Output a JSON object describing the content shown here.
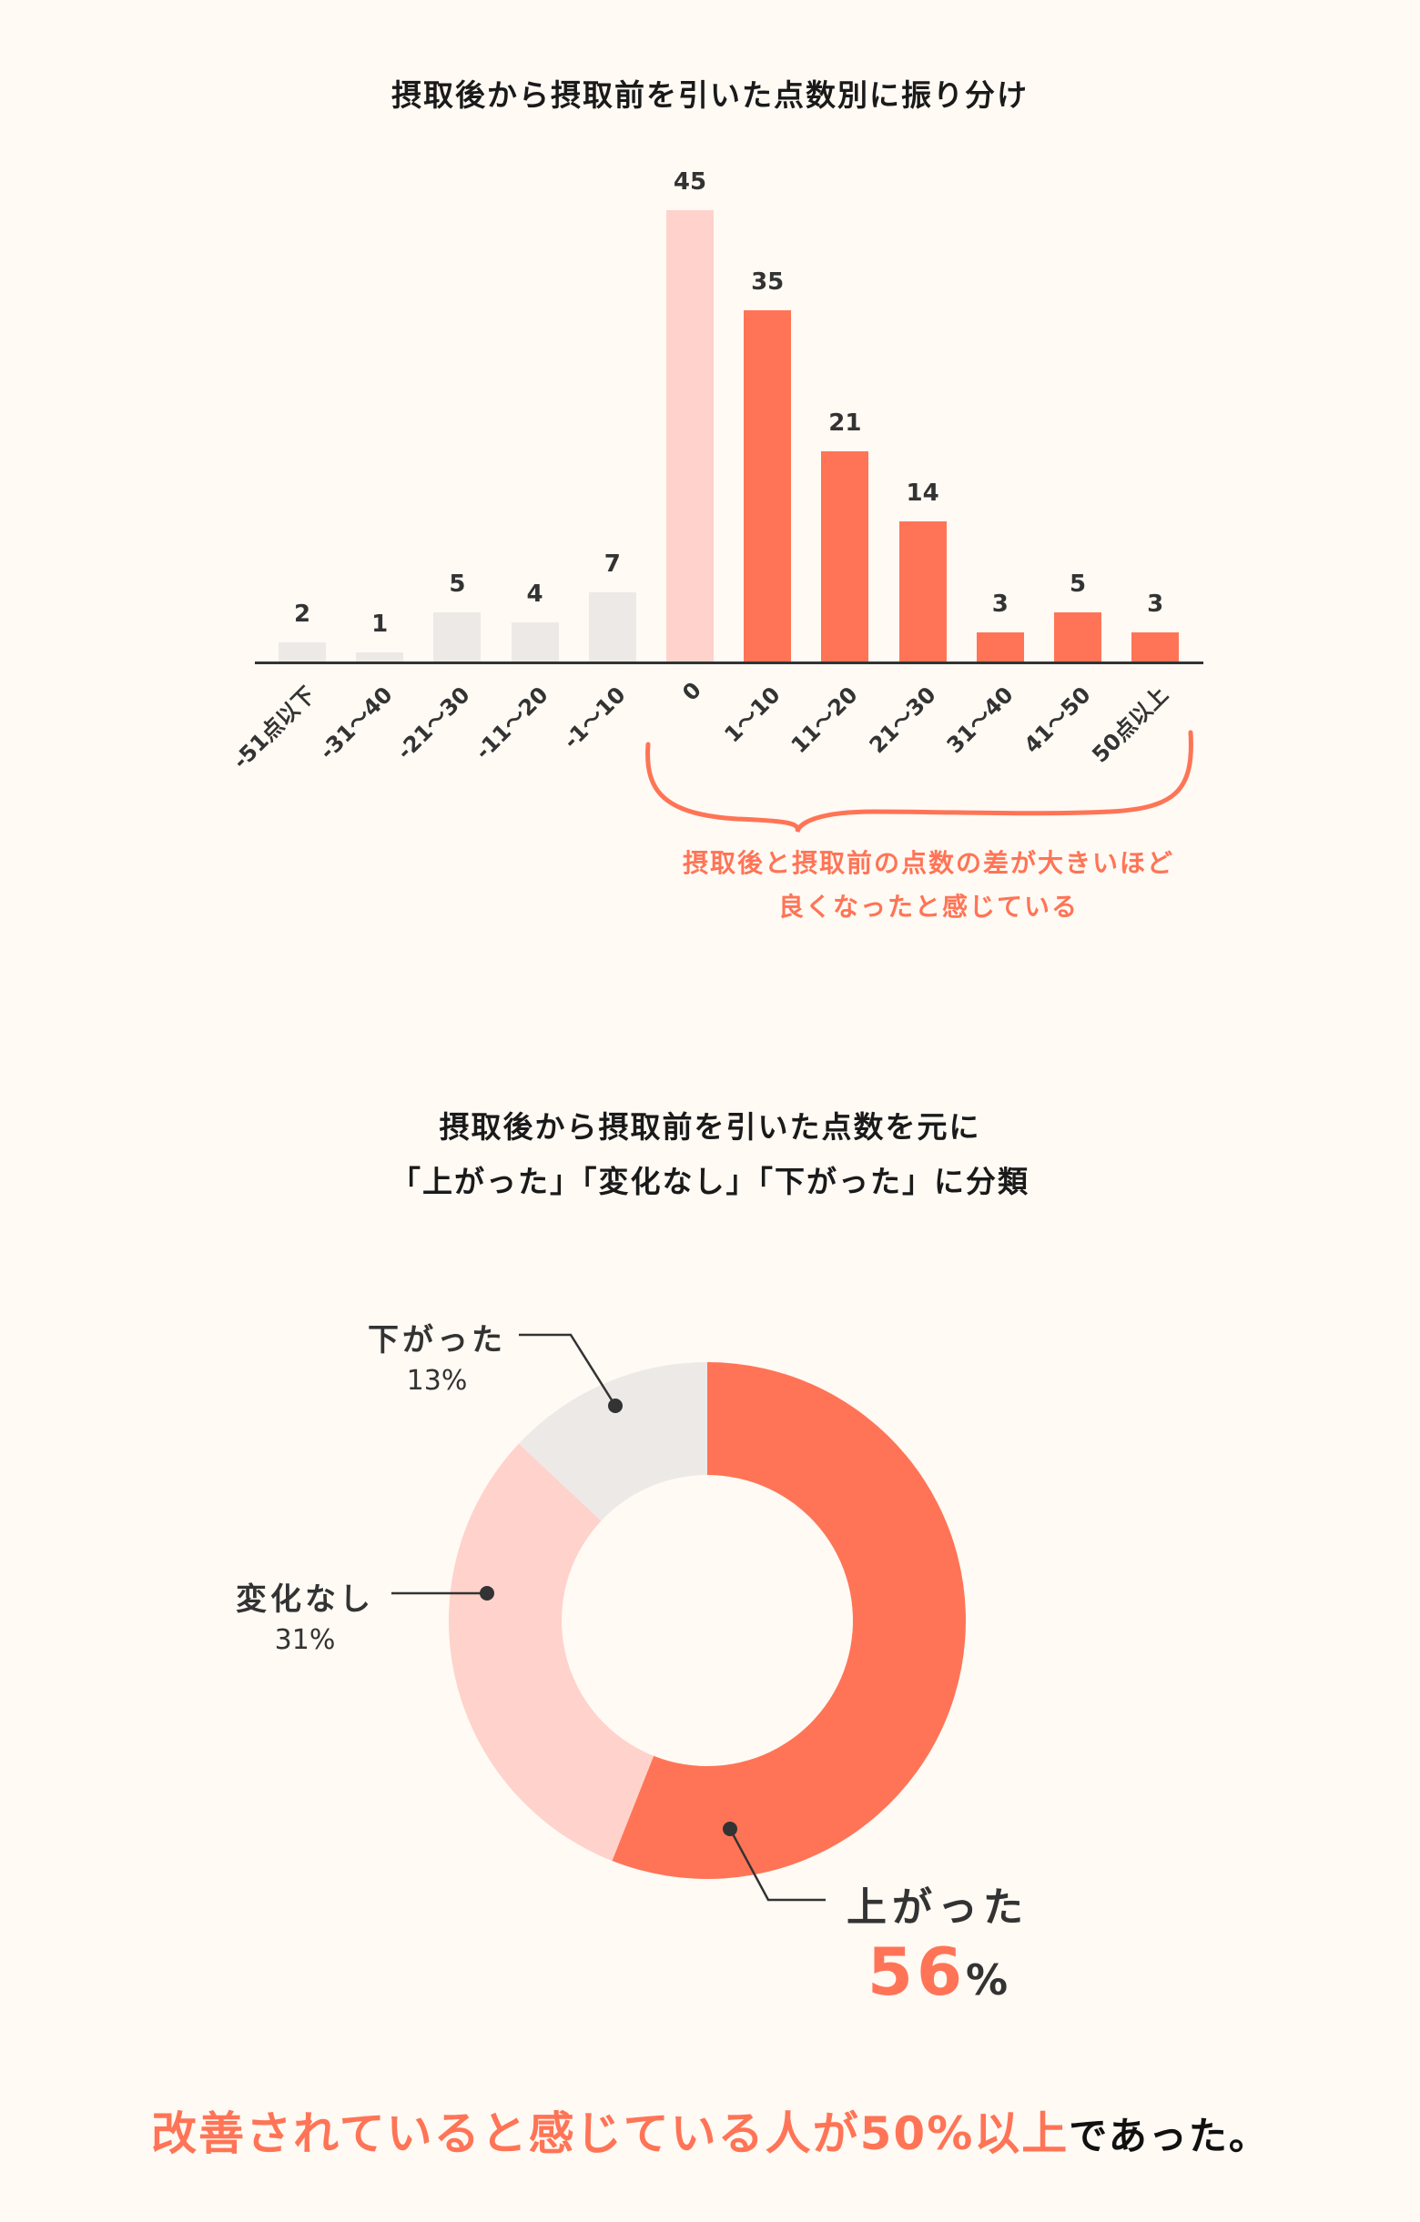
{
  "colors": {
    "background": "#fffaf4",
    "coral": "#ff7456",
    "light_pink": "#ffd2cb",
    "gray": "#ece9e7",
    "text_dark": "#333333"
  },
  "bar_section": {
    "title": "摂取後から摂取前を引いた点数別に振り分け",
    "annotation_line1": "摂取後と摂取前の点数の差が大きいほど",
    "annotation_line2": "良くなったと感じている"
  },
  "donut_section": {
    "title_line1": "摂取後から摂取前を引いた点数を元に",
    "title_line2": "「上がった」「変化なし」「下がった」に分類",
    "labels": {
      "down": {
        "name": "下がった",
        "pct": "13%"
      },
      "same": {
        "name": "変化なし",
        "pct": "31%"
      },
      "up": {
        "name": "上がった",
        "pct_num": "56",
        "pct_sign": "%"
      }
    }
  },
  "conclusion": {
    "highlight": "改善されていると感じている人が50%以上",
    "tail": "であった。"
  },
  "chart_data": [
    {
      "type": "bar",
      "title": "摂取後から摂取前を引いた点数別に振り分け",
      "categories": [
        "-51点以下",
        "-31〜40",
        "-21〜30",
        "-11〜20",
        "-1〜10",
        "0",
        "1〜10",
        "11〜20",
        "21〜30",
        "31〜40",
        "41〜50",
        "50点以上"
      ],
      "values": [
        2,
        1,
        5,
        4,
        7,
        45,
        35,
        21,
        14,
        3,
        5,
        3
      ],
      "bar_colors": [
        "#ece9e7",
        "#ece9e7",
        "#ece9e7",
        "#ece9e7",
        "#ece9e7",
        "#ffd2cb",
        "#ff7456",
        "#ff7456",
        "#ff7456",
        "#ff7456",
        "#ff7456",
        "#ff7456"
      ],
      "xlabel": "",
      "ylabel": "",
      "ylim": [
        0,
        45
      ],
      "grid": false,
      "data_labels": true,
      "annotations": [
        "摂取後と摂取前の点数の差が大きいほど良くなったと感じている"
      ]
    },
    {
      "type": "pie",
      "donut": true,
      "title": "摂取後から摂取前を引いた点数を元に「上がった」「変化なし」「下がった」に分類",
      "labels": [
        "上がった",
        "変化なし",
        "下がった"
      ],
      "values": [
        56,
        31,
        13
      ],
      "colors": [
        "#ff7456",
        "#ffd2cb",
        "#ece9e7"
      ]
    }
  ]
}
